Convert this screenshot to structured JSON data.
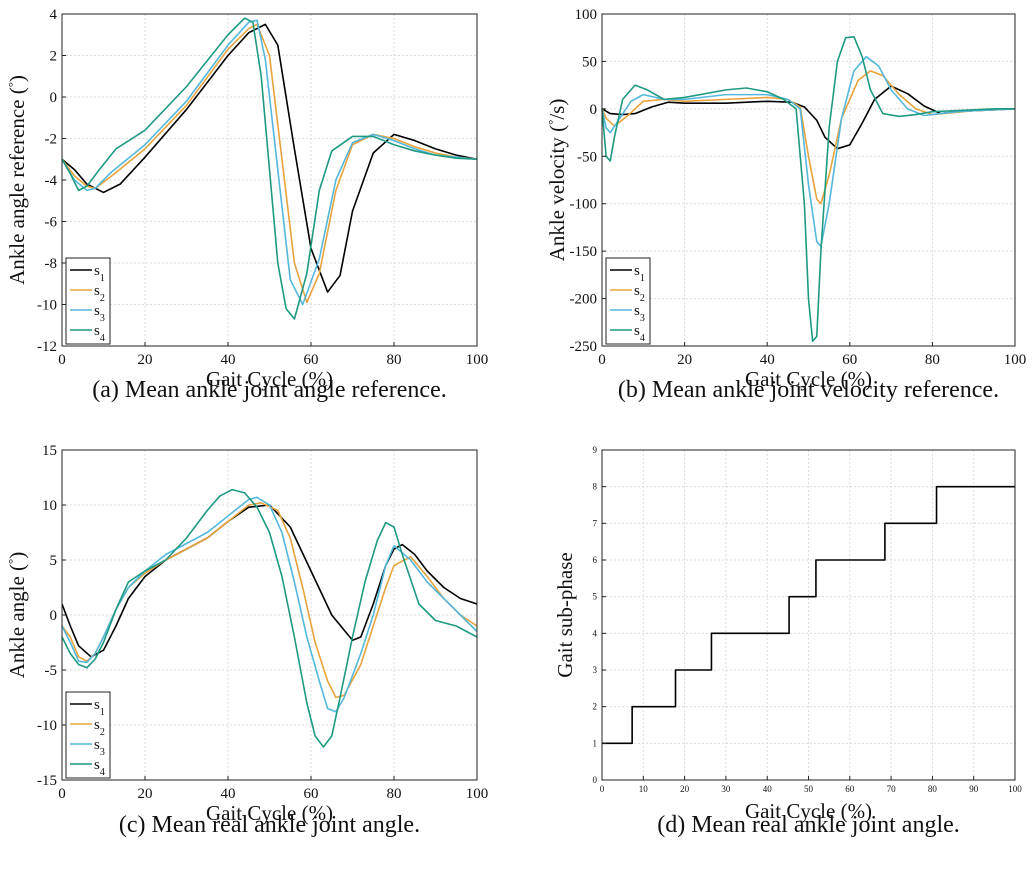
{
  "chart_data": [
    {
      "type": "line",
      "caption": "(a) Mean ankle joint angle reference.",
      "xlabel": "Gait Cycle (%)",
      "ylabel": "Ankle angle reference (°)",
      "xlim": [
        0,
        100
      ],
      "ylim": [
        -12,
        4
      ],
      "xticks": [
        0,
        20,
        40,
        60,
        80,
        100
      ],
      "yticks": [
        4,
        2,
        0,
        -2,
        -4,
        -6,
        -8,
        -10,
        -12
      ],
      "grid": true,
      "legend_position": "bottom-left",
      "series": [
        {
          "name": "s1",
          "color": "#000000",
          "x": [
            0,
            3,
            6,
            10,
            14,
            20,
            30,
            40,
            45,
            49,
            52,
            56,
            60,
            64,
            67,
            70,
            75,
            80,
            85,
            90,
            95,
            100
          ],
          "y": [
            -3,
            -3.5,
            -4.2,
            -4.6,
            -4.2,
            -2.9,
            -0.6,
            2.0,
            3.1,
            3.5,
            2.5,
            -2.5,
            -7.3,
            -9.4,
            -8.6,
            -5.5,
            -2.7,
            -1.8,
            -2.1,
            -2.5,
            -2.8,
            -3.0
          ]
        },
        {
          "name": "s2",
          "color": "#E8A33D",
          "x": [
            0,
            3,
            6,
            8,
            12,
            20,
            30,
            40,
            45,
            47,
            50,
            53,
            56,
            59,
            62,
            66,
            70,
            75,
            80,
            85,
            90,
            95,
            100
          ],
          "y": [
            -3,
            -3.8,
            -4.3,
            -4.4,
            -3.8,
            -2.5,
            -0.4,
            2.3,
            3.3,
            3.5,
            2.0,
            -3.0,
            -8.0,
            -9.9,
            -8.5,
            -4.5,
            -2.3,
            -1.8,
            -2.0,
            -2.4,
            -2.7,
            -2.9,
            -3.0
          ]
        },
        {
          "name": "s3",
          "color": "#54B8DC",
          "x": [
            0,
            3,
            6,
            8,
            12,
            20,
            30,
            40,
            45,
            47,
            49,
            52,
            55,
            58,
            62,
            66,
            70,
            75,
            80,
            85,
            90,
            95,
            100
          ],
          "y": [
            -3,
            -4.0,
            -4.5,
            -4.4,
            -3.6,
            -2.3,
            -0.2,
            2.5,
            3.6,
            3.7,
            1.8,
            -3.5,
            -8.8,
            -10.0,
            -7.8,
            -4.0,
            -2.2,
            -1.8,
            -2.1,
            -2.5,
            -2.8,
            -2.9,
            -3.0
          ]
        },
        {
          "name": "s4",
          "color": "#1E9A82",
          "x": [
            0,
            2,
            4,
            6,
            9,
            13,
            20,
            30,
            40,
            44,
            46,
            48,
            50,
            52,
            54,
            56,
            59,
            62,
            65,
            70,
            75,
            80,
            85,
            90,
            95,
            100
          ],
          "y": [
            -3,
            -3.7,
            -4.5,
            -4.3,
            -3.5,
            -2.5,
            -1.6,
            0.5,
            3.0,
            3.8,
            3.6,
            1.0,
            -3.5,
            -8.0,
            -10.2,
            -10.7,
            -8.5,
            -4.5,
            -2.6,
            -1.9,
            -1.9,
            -2.3,
            -2.6,
            -2.8,
            -2.95,
            -3.0
          ]
        }
      ]
    },
    {
      "type": "line",
      "caption": "(b) Mean ankle joint velocity reference.",
      "xlabel": "Gait Cycle (%)",
      "ylabel": "Ankle velocity (°/s)",
      "xlim": [
        0,
        100
      ],
      "ylim": [
        -250,
        100
      ],
      "xticks": [
        0,
        20,
        40,
        60,
        80,
        100
      ],
      "yticks": [
        100,
        50,
        0,
        -50,
        -100,
        -150,
        -200,
        -250
      ],
      "grid": true,
      "legend_position": "bottom-left",
      "series": [
        {
          "name": "s1",
          "color": "#000000",
          "x": [
            0,
            2,
            5,
            8,
            12,
            16,
            20,
            30,
            40,
            46,
            49,
            52,
            54,
            57,
            60,
            63,
            66,
            70,
            74,
            78,
            82,
            86,
            90,
            95,
            100
          ],
          "y": [
            0,
            -5,
            -6,
            -5,
            2,
            7,
            6,
            6,
            8,
            7,
            2,
            -12,
            -30,
            -42,
            -38,
            -15,
            10,
            24,
            16,
            3,
            -5,
            -3,
            -2,
            -1,
            0
          ]
        },
        {
          "name": "s2",
          "color": "#E8A33D",
          "x": [
            0,
            1,
            3,
            6,
            10,
            15,
            20,
            30,
            40,
            45,
            48,
            50,
            52,
            53,
            55,
            58,
            62,
            65,
            68,
            72,
            76,
            80,
            85,
            90,
            95,
            100
          ],
          "y": [
            0,
            -10,
            -18,
            -8,
            8,
            10,
            8,
            10,
            12,
            10,
            2,
            -50,
            -95,
            -100,
            -70,
            -10,
            30,
            40,
            35,
            15,
            0,
            -6,
            -4,
            -2,
            -1,
            0
          ]
        },
        {
          "name": "s3",
          "color": "#54B8DC",
          "x": [
            0,
            1,
            2,
            4,
            7,
            10,
            15,
            20,
            30,
            40,
            45,
            48,
            50,
            52,
            53,
            55,
            58,
            61,
            64,
            67,
            70,
            74,
            78,
            82,
            86,
            90,
            95,
            100
          ],
          "y": [
            0,
            -20,
            -25,
            -12,
            8,
            15,
            10,
            10,
            15,
            15,
            10,
            0,
            -80,
            -140,
            -145,
            -100,
            -10,
            40,
            55,
            45,
            20,
            0,
            -7,
            -5,
            -3,
            -2,
            -1,
            0
          ]
        },
        {
          "name": "s4",
          "color": "#1E9A82",
          "x": [
            0,
            1,
            2,
            3,
            5,
            8,
            11,
            15,
            20,
            30,
            35,
            40,
            44,
            47,
            49,
            50,
            51,
            52,
            53,
            55,
            57,
            59,
            61,
            63,
            65,
            68,
            72,
            76,
            80,
            85,
            90,
            95,
            100
          ],
          "y": [
            0,
            -50,
            -55,
            -30,
            10,
            25,
            20,
            10,
            12,
            20,
            22,
            18,
            10,
            0,
            -100,
            -200,
            -245,
            -240,
            -150,
            -20,
            50,
            75,
            76,
            55,
            20,
            -5,
            -8,
            -6,
            -3,
            -2,
            -1,
            0,
            0
          ]
        }
      ]
    },
    {
      "type": "line",
      "caption": "(c) Mean real ankle joint angle.",
      "xlabel": "Gait Cycle (%)",
      "ylabel": "Ankle angle (°)",
      "xlim": [
        0,
        100
      ],
      "ylim": [
        -15,
        15
      ],
      "xticks": [
        0,
        20,
        40,
        60,
        80,
        100
      ],
      "yticks": [
        15,
        10,
        5,
        0,
        -5,
        -10,
        -15
      ],
      "grid": true,
      "legend_position": "bottom-left",
      "series": [
        {
          "name": "s1",
          "color": "#000000",
          "x": [
            0,
            2,
            4,
            7,
            10,
            13,
            16,
            20,
            25,
            30,
            35,
            40,
            45,
            50,
            55,
            60,
            65,
            70,
            72,
            75,
            78,
            80,
            82,
            85,
            88,
            92,
            96,
            100
          ],
          "y": [
            1,
            -1,
            -2.8,
            -3.8,
            -3.2,
            -1,
            1.5,
            3.5,
            5,
            6,
            7,
            8.5,
            9.8,
            10,
            8,
            4,
            0,
            -2.3,
            -2,
            1,
            4.5,
            6,
            6.4,
            5.5,
            4,
            2.5,
            1.5,
            1
          ]
        },
        {
          "name": "s2",
          "color": "#E8A33D",
          "x": [
            0,
            2,
            4,
            6,
            8,
            10,
            13,
            16,
            20,
            25,
            30,
            35,
            40,
            45,
            48,
            52,
            55,
            58,
            61,
            64,
            66,
            68,
            72,
            75,
            78,
            80,
            84,
            88,
            92,
            96,
            100
          ],
          "y": [
            -1,
            -2,
            -3.8,
            -4.2,
            -3.5,
            -2,
            0.5,
            2.5,
            3.8,
            5,
            6,
            7,
            8.5,
            10,
            10.2,
            9.5,
            7,
            2.5,
            -2.5,
            -6,
            -7.5,
            -7.3,
            -4.5,
            -1,
            2.5,
            4.5,
            5.3,
            3.5,
            1.5,
            0,
            -1
          ]
        },
        {
          "name": "s3",
          "color": "#54B8DC",
          "x": [
            0,
            2,
            4,
            6,
            8,
            10,
            13,
            16,
            20,
            25,
            30,
            35,
            40,
            45,
            47,
            50,
            53,
            56,
            59,
            62,
            64,
            66,
            68,
            72,
            75,
            78,
            80,
            84,
            88,
            92,
            96,
            100
          ],
          "y": [
            -1,
            -2.5,
            -4.2,
            -4.3,
            -3.5,
            -2,
            0.5,
            2.5,
            4,
            5.5,
            6.5,
            7.5,
            9,
            10.5,
            10.7,
            10,
            7.5,
            3,
            -2,
            -6,
            -8.5,
            -8.8,
            -7.5,
            -3.5,
            0,
            4.5,
            6.3,
            5,
            3,
            1.5,
            0,
            -1.5
          ]
        },
        {
          "name": "s4",
          "color": "#1E9A82",
          "x": [
            0,
            2,
            4,
            6,
            8,
            10,
            13,
            16,
            20,
            25,
            30,
            35,
            38,
            41,
            44,
            47,
            50,
            53,
            56,
            59,
            61,
            63,
            65,
            67,
            70,
            73,
            76,
            78,
            80,
            82,
            86,
            90,
            95,
            100
          ],
          "y": [
            -2,
            -3.5,
            -4.5,
            -4.8,
            -4,
            -2.5,
            0.5,
            3,
            4,
            5,
            7,
            9.5,
            10.8,
            11.4,
            11.1,
            9.8,
            7.5,
            3.5,
            -2,
            -8,
            -11,
            -12,
            -11,
            -7.5,
            -2,
            3,
            6.8,
            8.4,
            8,
            5.5,
            1,
            -0.5,
            -1,
            -2
          ]
        }
      ]
    },
    {
      "type": "line",
      "caption": "(d) Mean real ankle joint angle.",
      "xlabel": "Gait Cycle (%)",
      "ylabel": "Gait sub-phase",
      "xlim": [
        0,
        100
      ],
      "ylim": [
        0,
        9
      ],
      "xticks": [
        0,
        10,
        20,
        30,
        40,
        50,
        60,
        70,
        80,
        90,
        100
      ],
      "yticks": [
        9,
        8,
        7,
        6,
        5,
        4,
        3,
        2,
        1,
        0
      ],
      "grid": true,
      "series": [
        {
          "name": "",
          "color": "#000000",
          "step": true,
          "x": [
            0,
            7.3,
            17.8,
            26.5,
            45.3,
            51.8,
            68.5,
            81,
            100
          ],
          "y": [
            1,
            2,
            3,
            4,
            5,
            6,
            7,
            8,
            8
          ]
        }
      ]
    }
  ]
}
